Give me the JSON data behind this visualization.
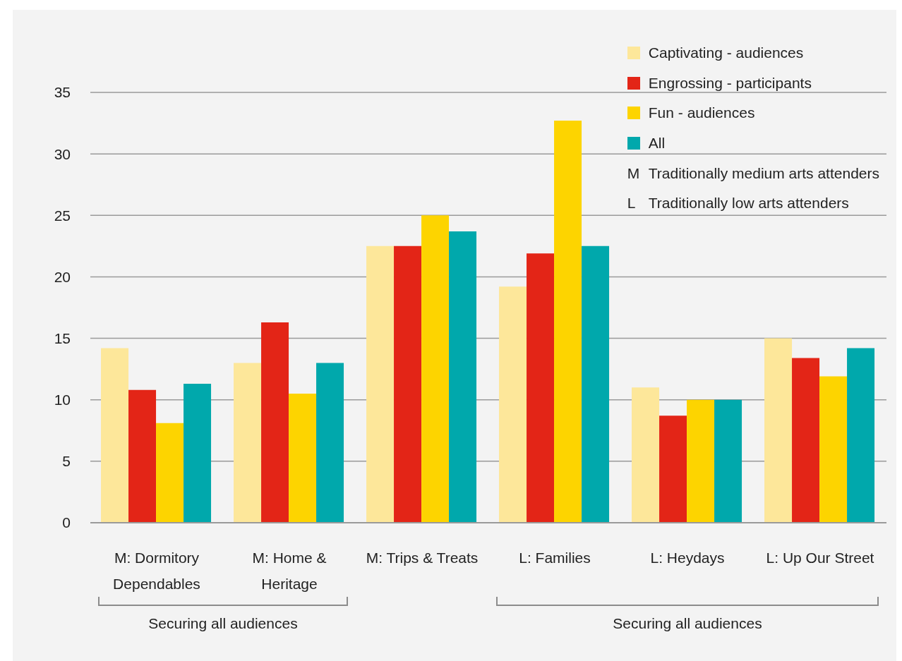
{
  "chart_data": {
    "type": "bar",
    "categories": [
      "M: Dormitory Dependables",
      "M: Home & Heritage",
      "M: Trips & Treats",
      "L: Families",
      "L: Heydays",
      "L: Up Our Street"
    ],
    "series": [
      {
        "name": "Captivating - audiences",
        "color": "#fde79a",
        "values": [
          14.2,
          13.0,
          22.5,
          19.2,
          11.0,
          15.0
        ]
      },
      {
        "name": "Engrossing - participants",
        "color": "#e32517",
        "values": [
          10.8,
          16.3,
          22.5,
          21.9,
          8.7,
          13.4
        ]
      },
      {
        "name": "Fun - audiences",
        "color": "#fdd400",
        "values": [
          8.1,
          10.5,
          25.0,
          32.7,
          10.0,
          11.9
        ]
      },
      {
        "name": "All",
        "color": "#00a8ac",
        "values": [
          11.3,
          13.0,
          23.7,
          22.5,
          10.0,
          14.2
        ]
      }
    ],
    "ylim": [
      0,
      35
    ],
    "yticks": [
      0,
      5,
      10,
      15,
      20,
      25,
      30,
      35
    ],
    "grid": "y",
    "legend": "top right",
    "annotations": [
      "M Traditionally medium arts attenders",
      "L Traditionally low arts attenders",
      "Securing all audiences",
      "Securing all audiences"
    ]
  }
}
